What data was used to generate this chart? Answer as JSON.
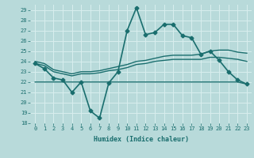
{
  "xlabel": "Humidex (Indice chaleur)",
  "xlim": [
    -0.5,
    23.5
  ],
  "ylim": [
    18,
    29.5
  ],
  "yticks": [
    18,
    19,
    20,
    21,
    22,
    23,
    24,
    25,
    26,
    27,
    28,
    29
  ],
  "xticks": [
    0,
    1,
    2,
    3,
    4,
    5,
    6,
    7,
    8,
    9,
    10,
    11,
    12,
    13,
    14,
    15,
    16,
    17,
    18,
    19,
    20,
    21,
    22,
    23
  ],
  "bg_color": "#b8dada",
  "grid_color": "#d8eeee",
  "line_color": "#1a6e6e",
  "lines": [
    {
      "x": [
        0,
        1,
        2,
        3,
        4,
        5,
        6,
        7,
        8,
        9,
        10,
        11,
        12,
        13,
        14,
        15,
        16,
        17,
        18,
        19,
        20,
        21,
        22,
        23
      ],
      "y": [
        23.8,
        23.3,
        22.4,
        22.2,
        21.0,
        22.0,
        19.2,
        18.5,
        21.9,
        23.0,
        27.0,
        29.2,
        26.6,
        26.8,
        27.6,
        27.6,
        26.5,
        26.3,
        24.7,
        25.0,
        24.1,
        23.0,
        22.2,
        21.8
      ],
      "marker": "D",
      "marker_size": 2.5,
      "lw": 1.2,
      "zorder": 5
    },
    {
      "x": [
        0,
        1,
        2,
        3,
        4,
        5,
        6,
        7,
        8,
        9,
        10,
        11,
        12,
        13,
        14,
        15,
        16,
        17,
        18,
        19,
        20,
        21,
        22,
        23
      ],
      "y": [
        24.0,
        23.8,
        23.2,
        23.0,
        22.8,
        23.0,
        23.0,
        23.1,
        23.3,
        23.5,
        23.7,
        24.0,
        24.1,
        24.3,
        24.5,
        24.6,
        24.6,
        24.6,
        24.7,
        25.0,
        25.1,
        25.1,
        24.9,
        24.8
      ],
      "marker": null,
      "lw": 1.0,
      "zorder": 3
    },
    {
      "x": [
        0,
        1,
        2,
        3,
        4,
        5,
        6,
        7,
        8,
        9,
        10,
        11,
        12,
        13,
        14,
        15,
        16,
        17,
        18,
        19,
        20,
        21,
        22,
        23
      ],
      "y": [
        23.8,
        23.6,
        23.0,
        22.8,
        22.6,
        22.8,
        22.8,
        22.9,
        23.1,
        23.2,
        23.4,
        23.7,
        23.8,
        24.0,
        24.1,
        24.2,
        24.2,
        24.2,
        24.2,
        24.4,
        24.4,
        24.3,
        24.2,
        24.0
      ],
      "marker": null,
      "lw": 1.0,
      "zorder": 3
    },
    {
      "x": [
        0,
        1,
        2,
        3,
        4,
        5,
        6,
        7,
        8,
        9,
        10,
        11,
        12,
        13,
        14,
        15,
        16,
        17,
        18,
        19,
        20,
        21,
        22,
        23
      ],
      "y": [
        22.0,
        22.0,
        22.0,
        22.0,
        22.0,
        22.0,
        22.0,
        22.0,
        22.0,
        22.0,
        22.0,
        22.0,
        22.0,
        22.0,
        22.0,
        22.0,
        22.0,
        22.0,
        22.0,
        22.0,
        22.0,
        22.0,
        22.0,
        21.8
      ],
      "marker": null,
      "lw": 1.0,
      "zorder": 3
    }
  ]
}
